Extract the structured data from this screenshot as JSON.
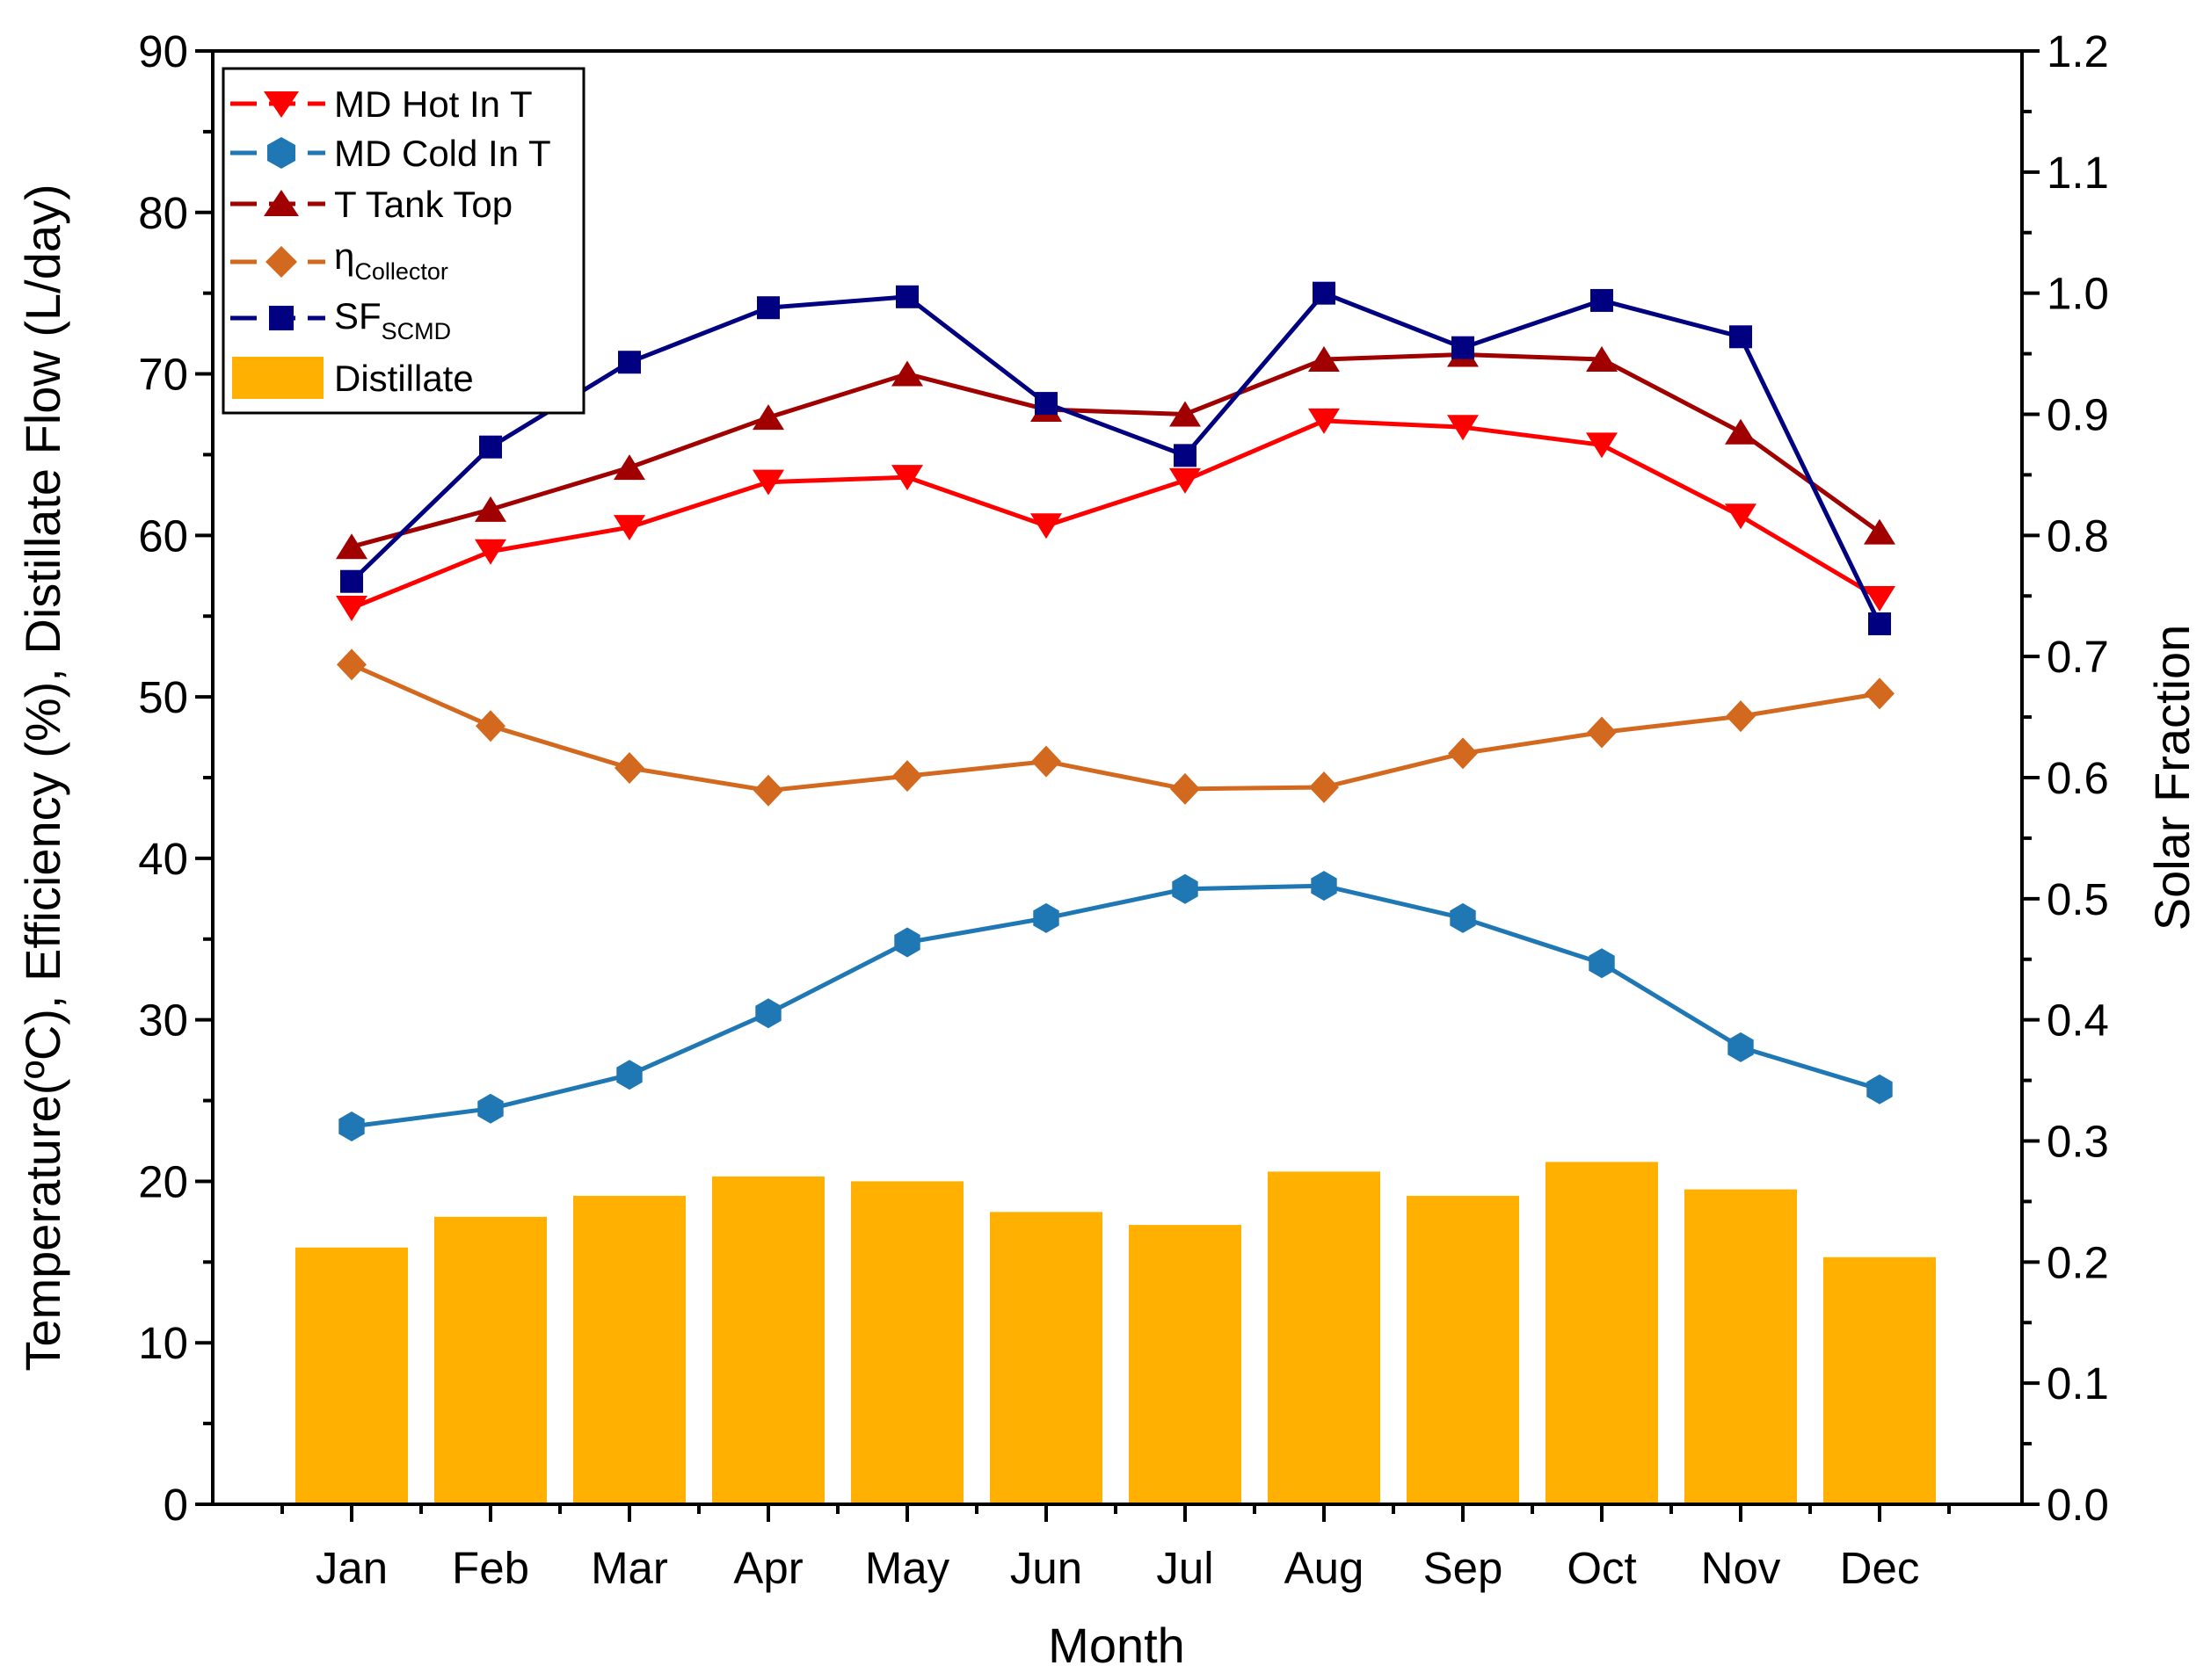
{
  "chart_data": {
    "type": "bar+line",
    "categories": [
      "Jan",
      "Feb",
      "Mar",
      "Apr",
      "May",
      "Jun",
      "Jul",
      "Aug",
      "Sep",
      "Oct",
      "Nov",
      "Dec"
    ],
    "xlabel": "Month",
    "ylabel": "Temperature(ºC), Efficiency (%), Distillate Flow (L/day)",
    "y2label": "Solar Fraction",
    "ylim": [
      0,
      90
    ],
    "y2lim": [
      0.0,
      1.2
    ],
    "yticks": [
      "0",
      "10",
      "20",
      "30",
      "40",
      "50",
      "60",
      "70",
      "80",
      "90"
    ],
    "y2ticks": [
      "0.0",
      "0.1",
      "0.2",
      "0.3",
      "0.4",
      "0.5",
      "0.6",
      "0.7",
      "0.8",
      "0.9",
      "1.0",
      "1.1",
      "1.2"
    ],
    "bars": {
      "name": "Distillate",
      "color": "#FFB000",
      "values": [
        15.9,
        17.8,
        19.1,
        20.3,
        20.0,
        18.1,
        17.3,
        20.6,
        19.1,
        21.2,
        19.5,
        15.3
      ]
    },
    "series": [
      {
        "name": "MD Hot In T",
        "color": "#FF0000",
        "marker": "triangle-down",
        "axis": "left",
        "values": [
          55.5,
          59.0,
          60.5,
          63.3,
          63.6,
          60.6,
          63.4,
          67.1,
          66.7,
          65.6,
          61.2,
          56.1
        ]
      },
      {
        "name": "MD Cold In T",
        "color": "#1F77B4",
        "marker": "hexagon",
        "axis": "left",
        "values": [
          23.4,
          24.5,
          26.6,
          30.4,
          34.8,
          36.3,
          38.1,
          38.3,
          36.3,
          33.5,
          28.3,
          25.7
        ]
      },
      {
        "name": "T Tank Top",
        "color": "#A00000",
        "marker": "triangle-up",
        "axis": "left",
        "values": [
          59.3,
          61.6,
          64.2,
          67.3,
          70.0,
          67.8,
          67.5,
          70.9,
          71.2,
          70.9,
          66.4,
          60.2
        ]
      },
      {
        "name": "ηCollector",
        "legend_main": "η",
        "legend_sub": "Collector",
        "color": "#D2691E",
        "marker": "diamond",
        "axis": "left",
        "values": [
          52.0,
          48.2,
          45.6,
          44.2,
          45.1,
          46.0,
          44.3,
          44.4,
          46.5,
          47.8,
          48.8,
          50.2
        ]
      },
      {
        "name": "SFSCMD",
        "legend_main": "SF",
        "legend_sub": "SCMD",
        "color": "#000080",
        "marker": "square",
        "axis": "right",
        "values": [
          0.762,
          0.873,
          0.943,
          0.988,
          0.997,
          0.909,
          0.866,
          1.0,
          0.955,
          0.994,
          0.964,
          0.727
        ]
      }
    ],
    "legend_position": "top-left"
  }
}
